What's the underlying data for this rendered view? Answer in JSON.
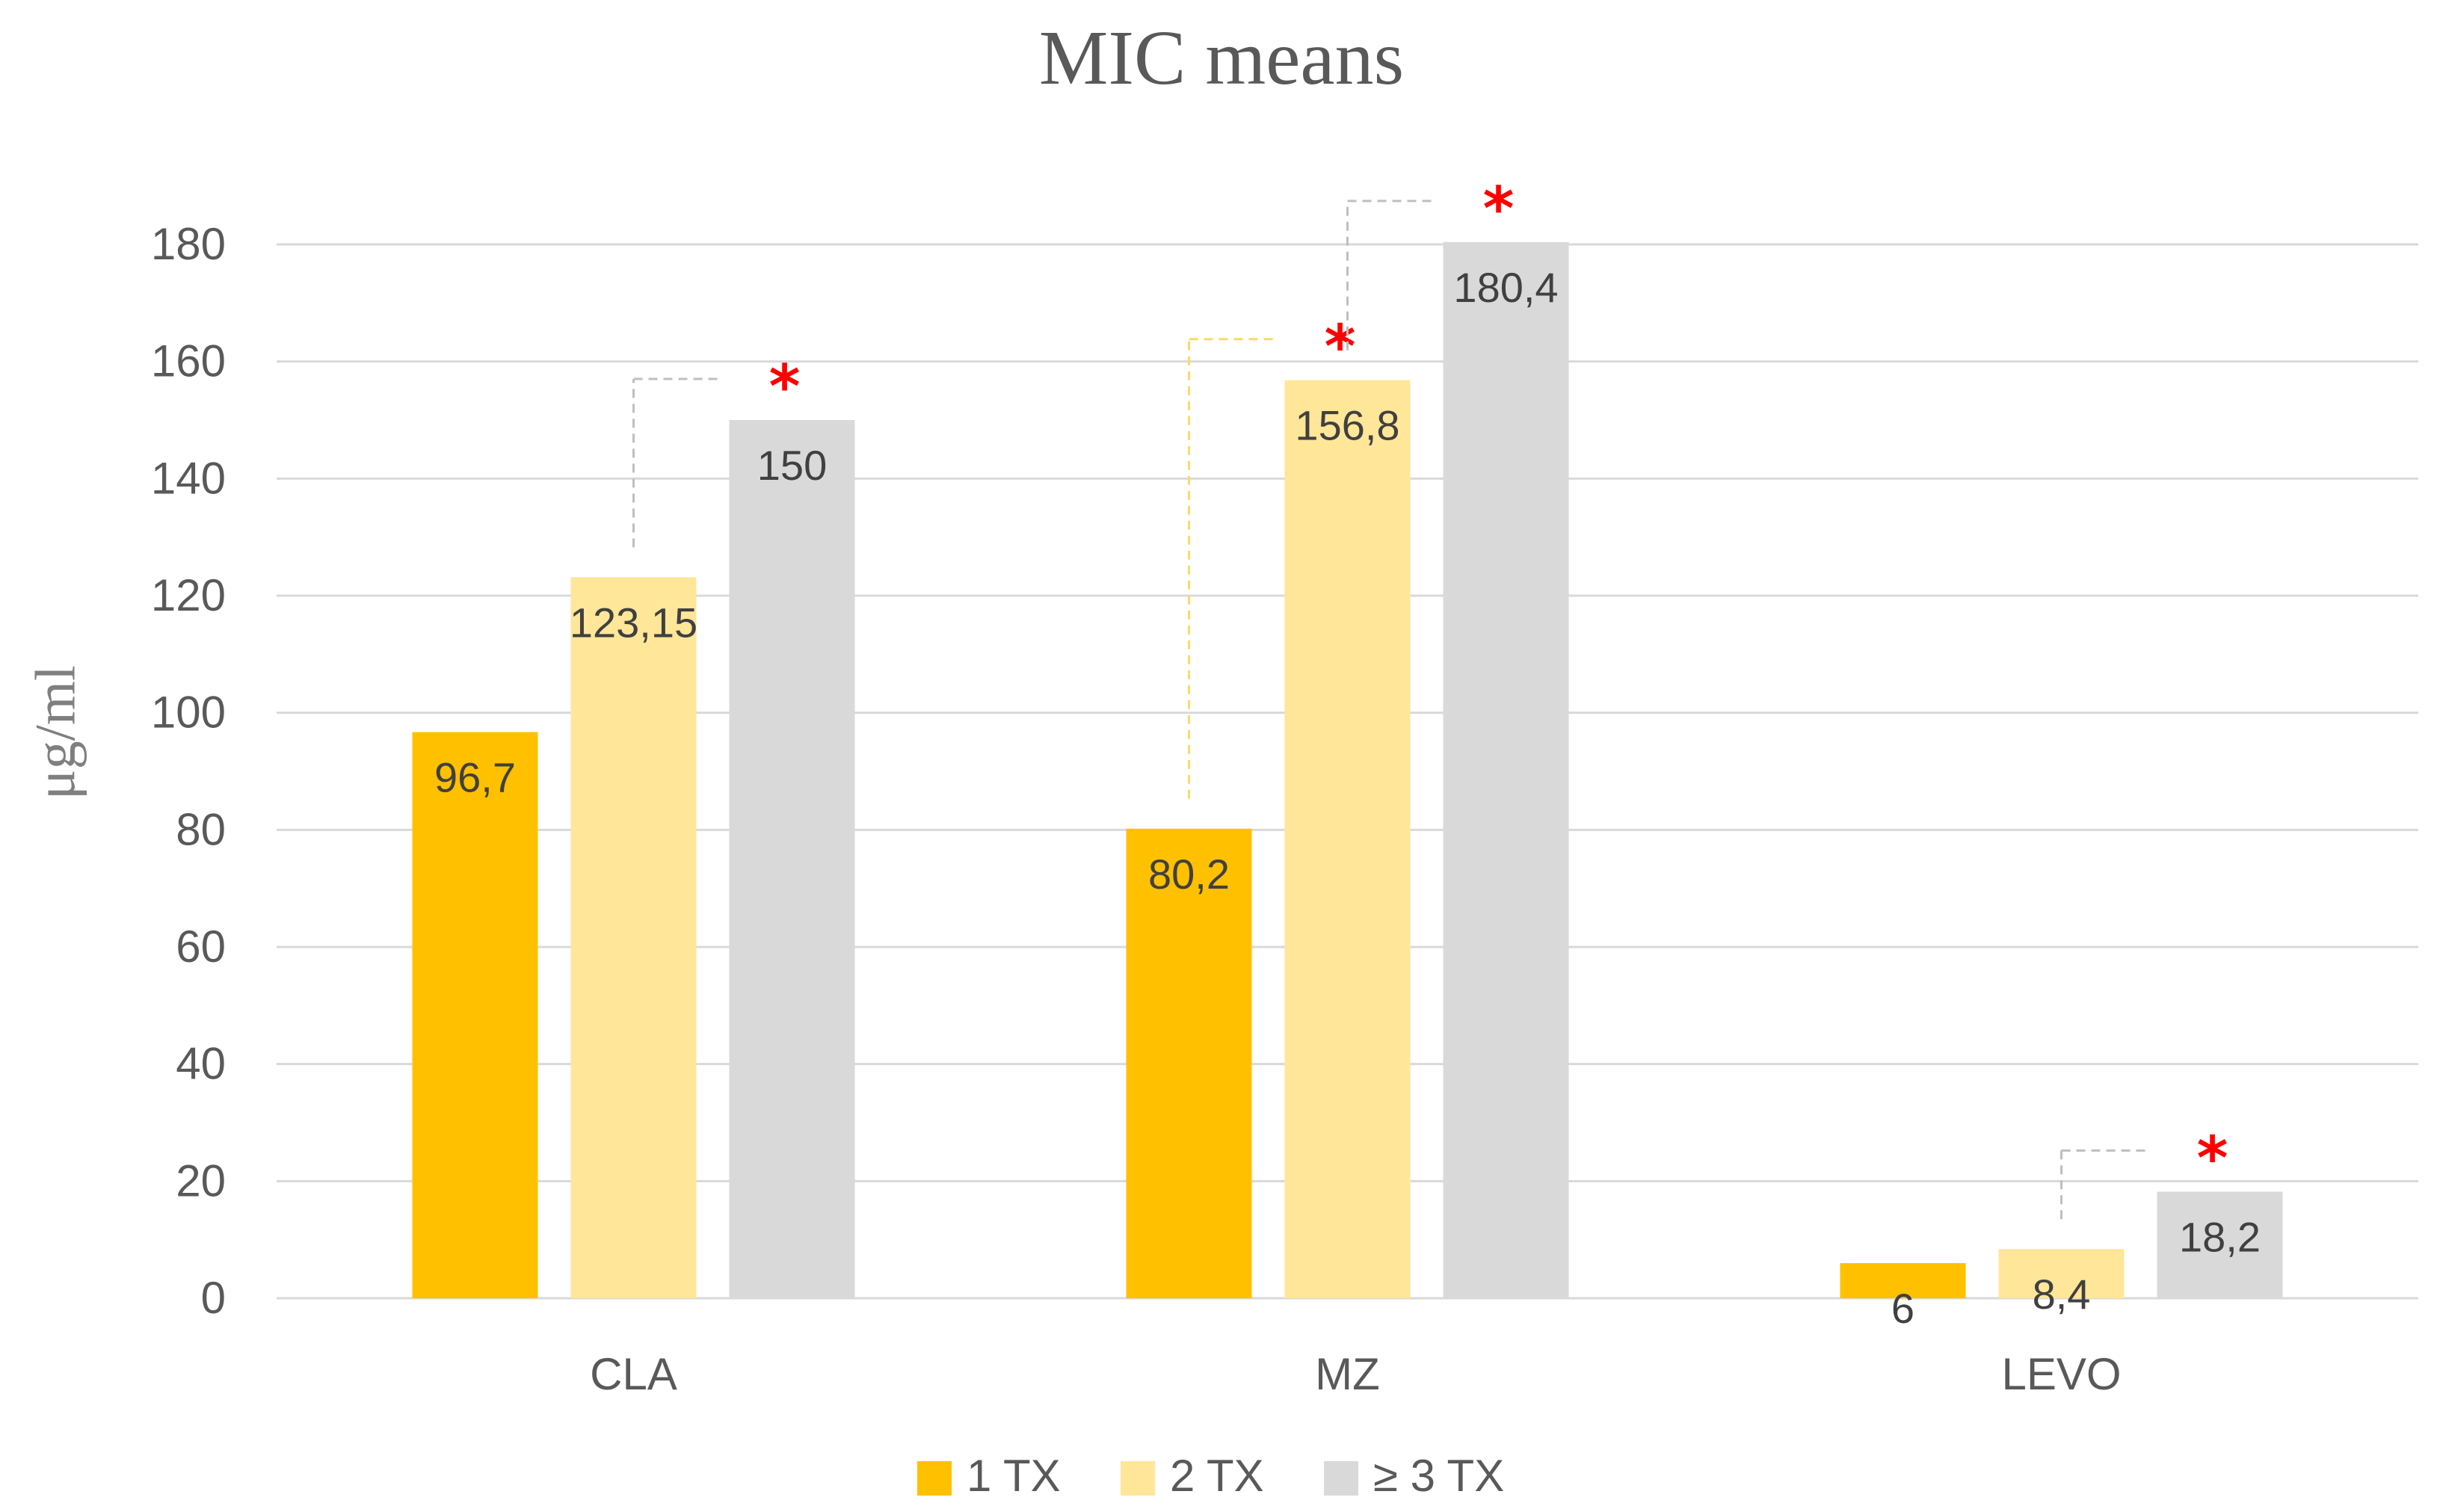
{
  "chart_data": {
    "type": "bar",
    "title": "MIC means",
    "ylabel": "μg/ml",
    "xlabel": "",
    "ylim": [
      0,
      180
    ],
    "yticks": [
      0,
      20,
      40,
      60,
      80,
      100,
      120,
      140,
      160,
      180
    ],
    "grid": true,
    "legend_position": "bottom",
    "categories": [
      "CLA",
      "MZ",
      "LEVO"
    ],
    "series": [
      {
        "name": "1 TX",
        "color": "#FFC000",
        "values": [
          96.7,
          80.2,
          6
        ],
        "labels": [
          "96,7",
          "80,2",
          "6"
        ]
      },
      {
        "name": "2 TX",
        "color": "#FFE699",
        "values": [
          123.15,
          156.8,
          8.4
        ],
        "labels": [
          "123,15",
          "156,8",
          "8,4"
        ]
      },
      {
        "name": "≥ 3 TX",
        "color": "#D9D9D9",
        "values": [
          150,
          180.4,
          18.2
        ],
        "labels": [
          "150",
          "180,4",
          "18,2"
        ]
      }
    ],
    "significance": [
      {
        "category": "CLA",
        "from_series": 1,
        "to_series": 2,
        "marker": "*",
        "line_color": "#BFBFBF"
      },
      {
        "category": "MZ",
        "from_series": 0,
        "to_series": 1,
        "marker": "*",
        "line_color": "#FFD966"
      },
      {
        "category": "MZ",
        "from_series": 1,
        "to_series": 2,
        "marker": "*",
        "line_color": "#BFBFBF"
      },
      {
        "category": "LEVO",
        "from_series": 1,
        "to_series": 2,
        "marker": "*",
        "line_color": "#BFBFBF"
      }
    ]
  }
}
